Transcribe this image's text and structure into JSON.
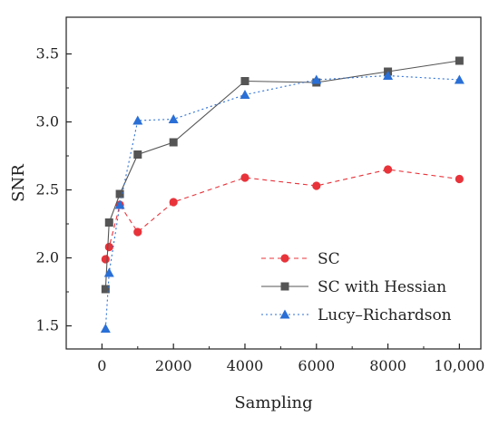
{
  "chart_data": {
    "type": "line",
    "title": "",
    "xlabel": "Sampling",
    "ylabel": "SNR",
    "xlim": [
      -1000,
      10600
    ],
    "ylim": [
      1.33,
      3.77
    ],
    "x_ticks": [
      0,
      2000,
      4000,
      6000,
      8000,
      10000
    ],
    "x_tick_labels": [
      "0",
      "2000",
      "4000",
      "6000",
      "8000",
      "10,000"
    ],
    "y_ticks": [
      1.5,
      2.0,
      2.5,
      3.0,
      3.5
    ],
    "y_tick_labels": [
      "1.5",
      "2.0",
      "2.5",
      "3.0",
      "3.5"
    ],
    "grid": false,
    "legend_position": "bottom-right",
    "series": [
      {
        "name": "SC",
        "color": "#e8333a",
        "marker": "circle",
        "line": "dashed",
        "x": [
          100,
          200,
          500,
          1000,
          2000,
          4000,
          6000,
          8000,
          10000
        ],
        "values": [
          1.99,
          2.08,
          2.39,
          2.19,
          2.41,
          2.59,
          2.53,
          2.65,
          2.58
        ]
      },
      {
        "name": "SC with Hessian",
        "color": "#555555",
        "marker": "square",
        "line": "solid",
        "x": [
          100,
          200,
          500,
          1000,
          2000,
          4000,
          6000,
          8000,
          10000
        ],
        "values": [
          1.77,
          2.26,
          2.47,
          2.76,
          2.85,
          3.3,
          3.29,
          3.37,
          3.45
        ]
      },
      {
        "name": "Lucy–Richardson",
        "color": "#2a6fd6",
        "marker": "triangle",
        "line": "dotted",
        "x": [
          100,
          200,
          500,
          1000,
          2000,
          4000,
          6000,
          8000,
          10000
        ],
        "values": [
          1.48,
          1.89,
          2.39,
          3.01,
          3.02,
          3.2,
          3.31,
          3.34,
          3.31
        ]
      }
    ]
  }
}
